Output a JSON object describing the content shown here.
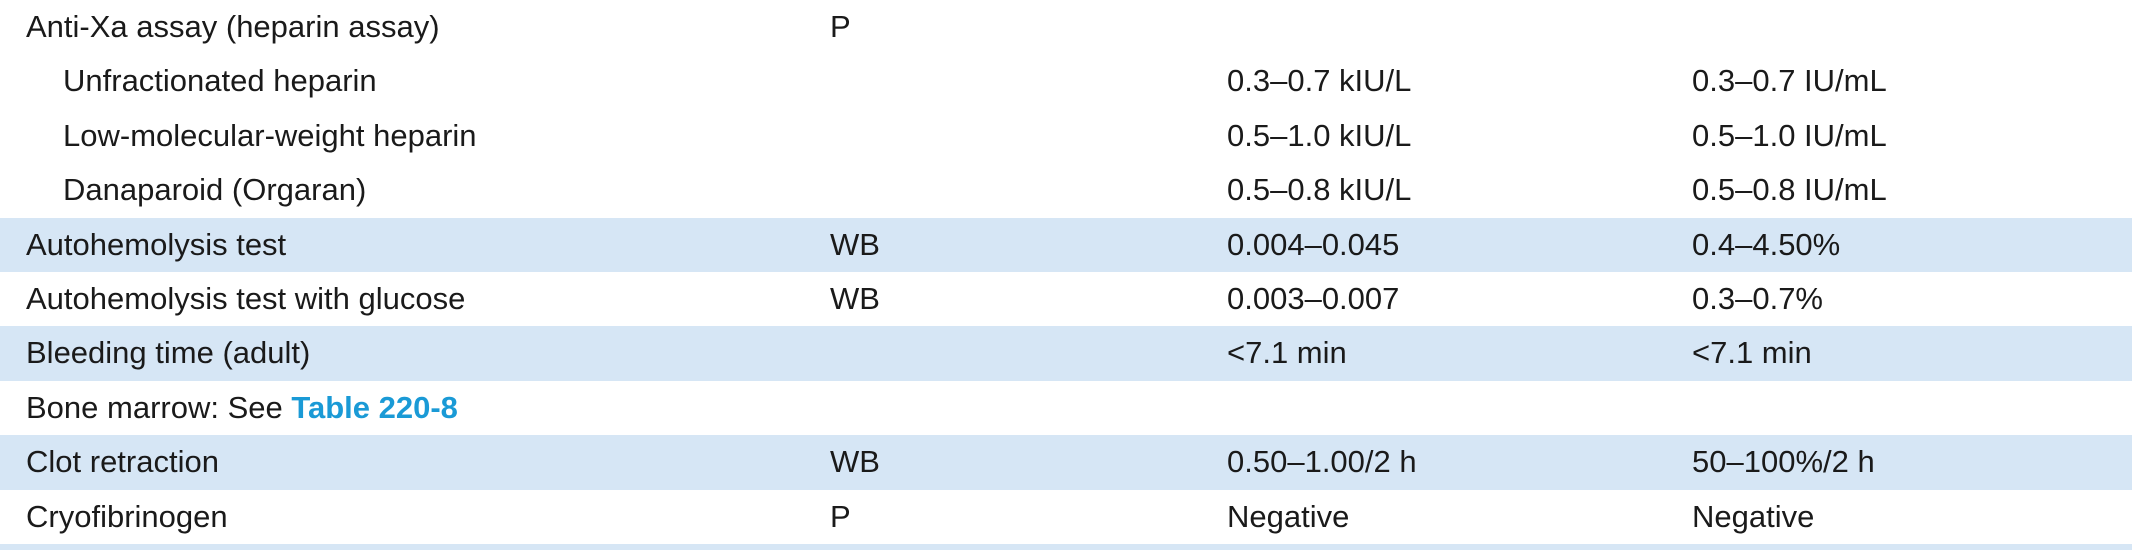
{
  "rows": [
    {
      "test": "Anti-Xa assay (heparin assay)",
      "specimen": "P",
      "si": "",
      "conventional": ""
    },
    {
      "test": "Unfractionated heparin",
      "specimen": "",
      "si": "0.3–0.7 kIU/L",
      "conventional": "0.3–0.7 IU/mL"
    },
    {
      "test": "Low-molecular-weight heparin",
      "specimen": "",
      "si": "0.5–1.0 kIU/L",
      "conventional": "0.5–1.0 IU/mL"
    },
    {
      "test": "Danaparoid (Orgaran)",
      "specimen": "",
      "si": "0.5–0.8 kIU/L",
      "conventional": "0.5–0.8 IU/mL"
    },
    {
      "test": "Autohemolysis test",
      "specimen": "WB",
      "si": "0.004–0.045",
      "conventional": "0.4–4.50%"
    },
    {
      "test": "Autohemolysis test with glucose",
      "specimen": "WB",
      "si": "0.003–0.007",
      "conventional": "0.3–0.7%"
    },
    {
      "test": "Bleeding time (adult)",
      "specimen": "",
      "si": "<7.1 min",
      "conventional": "<7.1 min"
    },
    {
      "test_prefix": "Bone marrow: See ",
      "test_link": "Table 220-8",
      "specimen": "",
      "si": "",
      "conventional": ""
    },
    {
      "test": "Clot retraction",
      "specimen": "WB",
      "si": "0.50–1.00/2 h",
      "conventional": "50–100%/2 h"
    },
    {
      "test": "Cryofibrinogen",
      "specimen": "P",
      "si": "Negative",
      "conventional": "Negative"
    }
  ],
  "colors": {
    "row_shade": "#d6e6f5",
    "link": "#1a9ad6",
    "text": "#1a1a1a"
  }
}
